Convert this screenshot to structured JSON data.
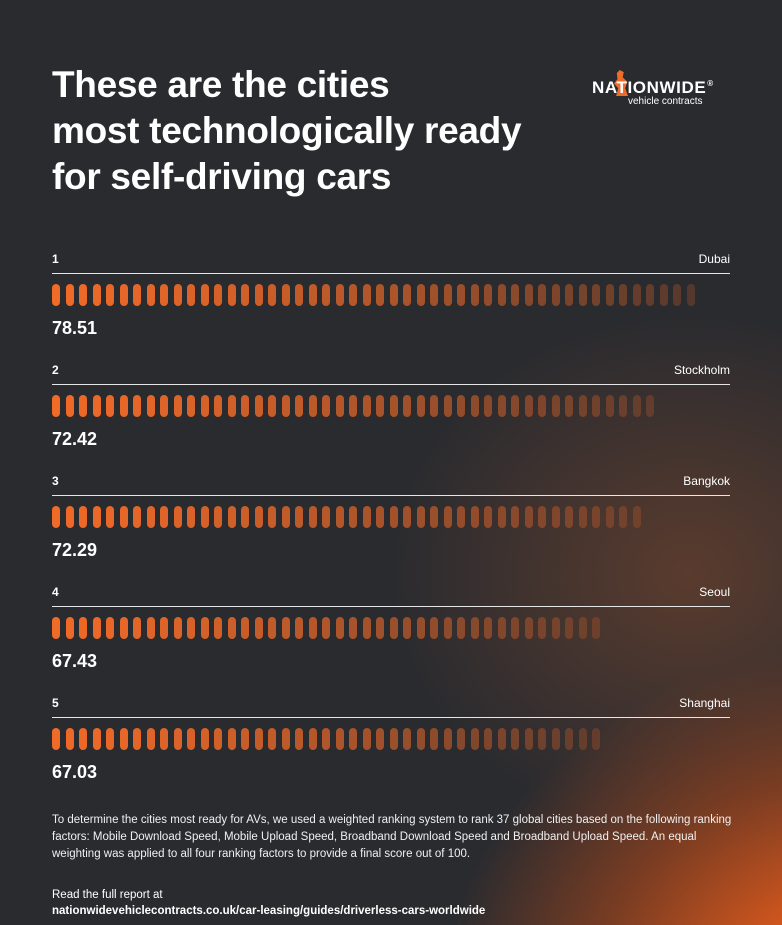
{
  "title_lines": [
    "These are the cities",
    "most technologically ready",
    "for self-driving cars"
  ],
  "logo": {
    "name": "NATIONWIDE",
    "registered_mark": "®",
    "subtitle": "vehicle contracts"
  },
  "colors": {
    "accent": "#f06a28",
    "background": "#2a2b2f"
  },
  "chart_data": {
    "type": "bar",
    "orientation": "horizontal",
    "ylim": [
      0,
      100
    ],
    "categories": [
      "Dubai",
      "Stockholm",
      "Bangkok",
      "Seoul",
      "Shanghai"
    ],
    "ranks": [
      "1",
      "2",
      "3",
      "4",
      "5"
    ],
    "values": [
      78.51,
      72.42,
      72.29,
      67.43,
      67.03
    ],
    "value_labels": [
      "78.51",
      "72.42",
      "72.29",
      "67.43",
      "67.03"
    ]
  },
  "methodology": "To determine the cities most ready for AVs, we used a weighted ranking system to rank 37 global cities based on the following ranking factors: Mobile Download Speed, Mobile Upload Speed, Broadband Download Speed and Broadband Upload Speed. An equal weighting was applied to all four ranking factors to provide a final score out of 100.",
  "report": {
    "label": "Read the full report at",
    "url": "nationwidevehiclecontracts.co.uk/car-leasing/guides/driverless-cars-worldwide"
  }
}
